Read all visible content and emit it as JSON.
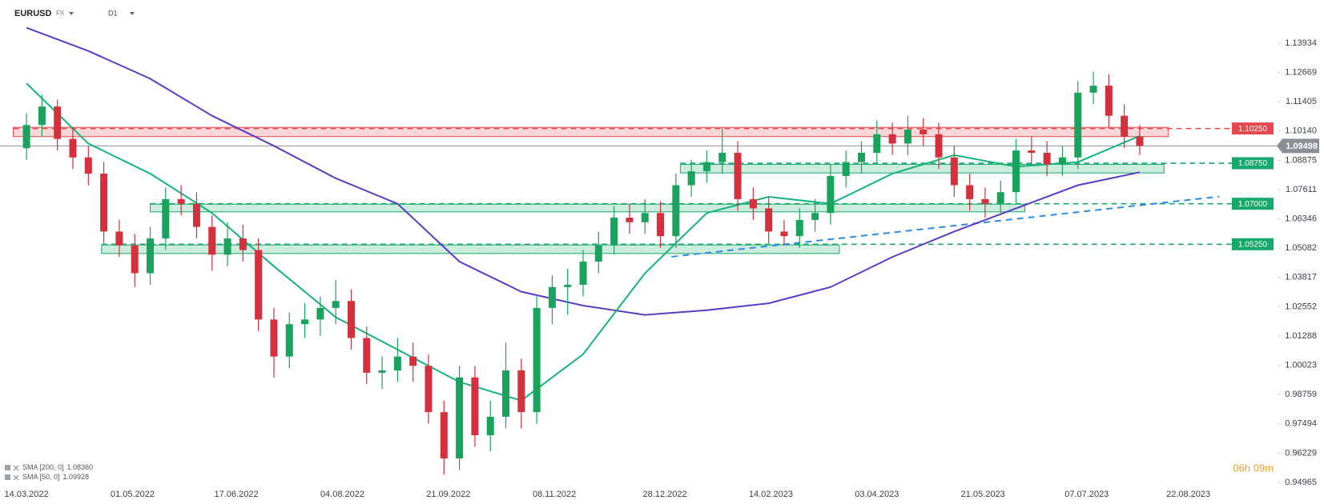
{
  "chart_data": {
    "type": "candlestick",
    "symbol": "EURUSD",
    "market": "FX",
    "interval": "D1",
    "timer": "06h 09m",
    "up_color": "#1aa35c",
    "down_color": "#d3313d",
    "x": [
      "14.03.2022",
      "21.03.2022",
      "28.03.2022",
      "04.04.2022",
      "11.04.2022",
      "18.04.2022",
      "25.04.2022",
      "02.05.2022",
      "09.05.2022",
      "16.05.2022",
      "23.05.2022",
      "30.05.2022",
      "06.06.2022",
      "13.06.2022",
      "20.06.2022",
      "27.06.2022",
      "04.07.2022",
      "11.07.2022",
      "18.07.2022",
      "25.07.2022",
      "01.08.2022",
      "08.08.2022",
      "15.08.2022",
      "22.08.2022",
      "29.08.2022",
      "05.09.2022",
      "12.09.2022",
      "19.09.2022",
      "26.09.2022",
      "03.10.2022",
      "10.10.2022",
      "17.10.2022",
      "24.10.2022",
      "31.10.2022",
      "07.11.2022",
      "14.11.2022",
      "21.11.2022",
      "28.11.2022",
      "05.12.2022",
      "12.12.2022",
      "19.12.2022",
      "26.12.2022",
      "02.01.2023",
      "09.01.2023",
      "16.01.2023",
      "23.01.2023",
      "30.01.2023",
      "06.02.2023",
      "13.02.2023",
      "20.02.2023",
      "27.02.2023",
      "06.03.2023",
      "13.03.2023",
      "20.03.2023",
      "27.03.2023",
      "03.04.2023",
      "10.04.2023",
      "17.04.2023",
      "24.04.2023",
      "01.05.2023",
      "08.05.2023",
      "15.05.2023",
      "22.05.2023",
      "29.05.2023",
      "05.06.2023",
      "12.06.2023",
      "19.06.2023",
      "26.06.2023",
      "03.07.2023",
      "10.07.2023",
      "17.07.2023",
      "24.07.2023",
      "31.07.2023"
    ],
    "open": [
      1.094,
      1.104,
      1.112,
      1.098,
      1.09,
      1.083,
      1.058,
      1.052,
      1.04,
      1.055,
      1.072,
      1.07,
      1.06,
      1.048,
      1.055,
      1.05,
      1.02,
      1.004,
      1.018,
      1.02,
      1.025,
      1.028,
      1.012,
      0.997,
      0.998,
      1.004,
      1.0,
      0.98,
      0.96,
      0.995,
      0.97,
      0.978,
      0.998,
      0.98,
      1.025,
      1.034,
      1.035,
      1.045,
      1.052,
      1.064,
      1.062,
      1.066,
      1.056,
      1.078,
      1.084,
      1.088,
      1.092,
      1.072,
      1.068,
      1.058,
      1.056,
      1.063,
      1.066,
      1.082,
      1.088,
      1.092,
      1.1,
      1.096,
      1.102,
      1.1,
      1.09,
      1.078,
      1.072,
      1.07,
      1.075,
      1.093,
      1.092,
      1.087,
      1.09,
      1.118,
      1.121,
      1.108,
      1.099
    ],
    "high": [
      1.109,
      1.117,
      1.115,
      1.103,
      1.095,
      1.088,
      1.063,
      1.057,
      1.06,
      1.077,
      1.078,
      1.075,
      1.065,
      1.062,
      1.061,
      1.055,
      1.025,
      1.023,
      1.027,
      1.03,
      1.037,
      1.033,
      1.017,
      1.004,
      1.012,
      1.01,
      1.005,
      0.985,
      1.0,
      1.0,
      0.985,
      1.01,
      1.003,
      1.03,
      1.039,
      1.042,
      1.05,
      1.058,
      1.069,
      1.07,
      1.072,
      1.071,
      1.083,
      1.089,
      1.093,
      1.103,
      1.097,
      1.077,
      1.073,
      1.063,
      1.068,
      1.072,
      1.087,
      1.093,
      1.097,
      1.106,
      1.105,
      1.108,
      1.107,
      1.105,
      1.095,
      1.083,
      1.077,
      1.08,
      1.098,
      1.099,
      1.097,
      1.095,
      1.123,
      1.127,
      1.126,
      1.113,
      1.104
    ],
    "low": [
      1.089,
      1.099,
      1.093,
      1.085,
      1.078,
      1.053,
      1.047,
      1.034,
      1.035,
      1.05,
      1.065,
      1.055,
      1.041,
      1.043,
      1.045,
      1.015,
      0.995,
      0.999,
      1.012,
      1.013,
      1.018,
      1.007,
      0.992,
      0.99,
      0.993,
      0.993,
      0.975,
      0.953,
      0.955,
      0.965,
      0.963,
      0.973,
      0.973,
      0.975,
      1.018,
      1.022,
      1.03,
      1.04,
      1.048,
      1.057,
      1.057,
      1.051,
      1.051,
      1.073,
      1.079,
      1.083,
      1.067,
      1.063,
      1.053,
      1.052,
      1.051,
      1.058,
      1.061,
      1.077,
      1.083,
      1.087,
      1.091,
      1.091,
      1.095,
      1.085,
      1.073,
      1.067,
      1.064,
      1.065,
      1.07,
      1.087,
      1.082,
      1.082,
      1.085,
      1.113,
      1.103,
      1.094,
      1.091
    ],
    "close": [
      1.104,
      1.112,
      1.098,
      1.09,
      1.083,
      1.058,
      1.052,
      1.04,
      1.055,
      1.072,
      1.07,
      1.06,
      1.048,
      1.055,
      1.05,
      1.02,
      1.004,
      1.018,
      1.02,
      1.025,
      1.028,
      1.012,
      0.997,
      0.998,
      1.004,
      1.0,
      0.98,
      0.96,
      0.995,
      0.97,
      0.978,
      0.998,
      0.98,
      1.025,
      1.034,
      1.035,
      1.045,
      1.052,
      1.064,
      1.062,
      1.066,
      1.056,
      1.078,
      1.084,
      1.088,
      1.092,
      1.072,
      1.068,
      1.058,
      1.056,
      1.063,
      1.066,
      1.082,
      1.088,
      1.092,
      1.1,
      1.096,
      1.102,
      1.1,
      1.09,
      1.078,
      1.072,
      1.07,
      1.075,
      1.093,
      1.092,
      1.087,
      1.09,
      1.118,
      1.121,
      1.108,
      1.099,
      1.095
    ],
    "xlim": [
      "02.03.2022",
      "06.09.2023"
    ],
    "xticks": [
      "14.03.2022",
      "01.05.2022",
      "17.06.2022",
      "04.08.2022",
      "21.09.2022",
      "08.11.2022",
      "28.12.2022",
      "14.02.2023",
      "03.04.2023",
      "21.05.2023",
      "07.07.2023",
      "22.08.2023"
    ],
    "ylim": [
      0.9486,
      1.158
    ],
    "yticks": [
      1.13934,
      1.12669,
      1.11405,
      {
        "value": 1.1014,
        "label": "1.10140"
      },
      1.08875,
      1.07611,
      1.06346,
      1.05082,
      1.03817,
      1.02552,
      1.01288,
      1.00023,
      0.98759,
      0.97494,
      0.96229,
      0.94965
    ],
    "lines": [
      {
        "name": "SMA [200, 0]",
        "color": "#5b3cc4",
        "value_label": "1.08360",
        "x": [
          "14.03.2022",
          "11.04.2022",
          "09.05.2022",
          "06.06.2022",
          "04.07.2022",
          "01.08.2022",
          "29.08.2022",
          "26.09.2022",
          "24.10.2022",
          "21.11.2022",
          "19.12.2022",
          "16.01.2023",
          "13.02.2023",
          "13.03.2023",
          "10.04.2023",
          "08.05.2023",
          "05.06.2023",
          "03.07.2023",
          "31.07.2023"
        ],
        "values": [
          1.146,
          1.136,
          1.124,
          1.108,
          1.095,
          1.081,
          1.07,
          1.045,
          1.032,
          1.026,
          1.022,
          1.024,
          1.027,
          1.034,
          1.047,
          1.058,
          1.068,
          1.078,
          1.0836
        ]
      },
      {
        "name": "SMA [50, 0]",
        "color": "#14b47c",
        "value_label": "1.09928",
        "x": [
          "14.03.2022",
          "11.04.2022",
          "09.05.2022",
          "06.06.2022",
          "04.07.2022",
          "01.08.2022",
          "29.08.2022",
          "26.09.2022",
          "24.10.2022",
          "21.11.2022",
          "19.12.2022",
          "16.01.2023",
          "13.02.2023",
          "13.03.2023",
          "10.04.2023",
          "08.05.2023",
          "05.06.2023",
          "03.07.2023",
          "31.07.2023"
        ],
        "values": [
          1.122,
          1.096,
          1.083,
          1.066,
          1.043,
          1.021,
          1.007,
          0.993,
          0.985,
          1.005,
          1.04,
          1.066,
          1.073,
          1.07,
          1.083,
          1.091,
          1.086,
          1.088,
          1.0993
        ]
      }
    ],
    "levels": [
      {
        "value": 1.1025,
        "label": "1.10250",
        "color": "#e5484d",
        "zone": [
          1.099,
          1.103
        ],
        "from": "08.03.2022",
        "to": "13.08.2023"
      },
      {
        "value": 1.0875,
        "label": "1.08750",
        "color": "#17a86b",
        "zone": [
          1.0833,
          1.087
        ],
        "from": "04.01.2023",
        "to": "11.08.2023"
      },
      {
        "value": 1.07,
        "label": "1.07000",
        "color": "#17a86b",
        "zone": [
          1.0665,
          1.0698
        ],
        "from": "09.05.2022",
        "to": "09.06.2023"
      },
      {
        "value": 1.0525,
        "label": "1.05250",
        "color": "#17a86b",
        "zone": [
          1.0485,
          1.0522
        ],
        "from": "17.04.2022",
        "to": "17.03.2023"
      }
    ],
    "last_price": {
      "value": 1.09498,
      "color": "#8a8f96"
    },
    "trendline": {
      "color": "#2e8be6",
      "x": [
        "31.12.2022",
        "05.09.2023"
      ],
      "values": [
        1.0471,
        1.0731
      ]
    }
  }
}
